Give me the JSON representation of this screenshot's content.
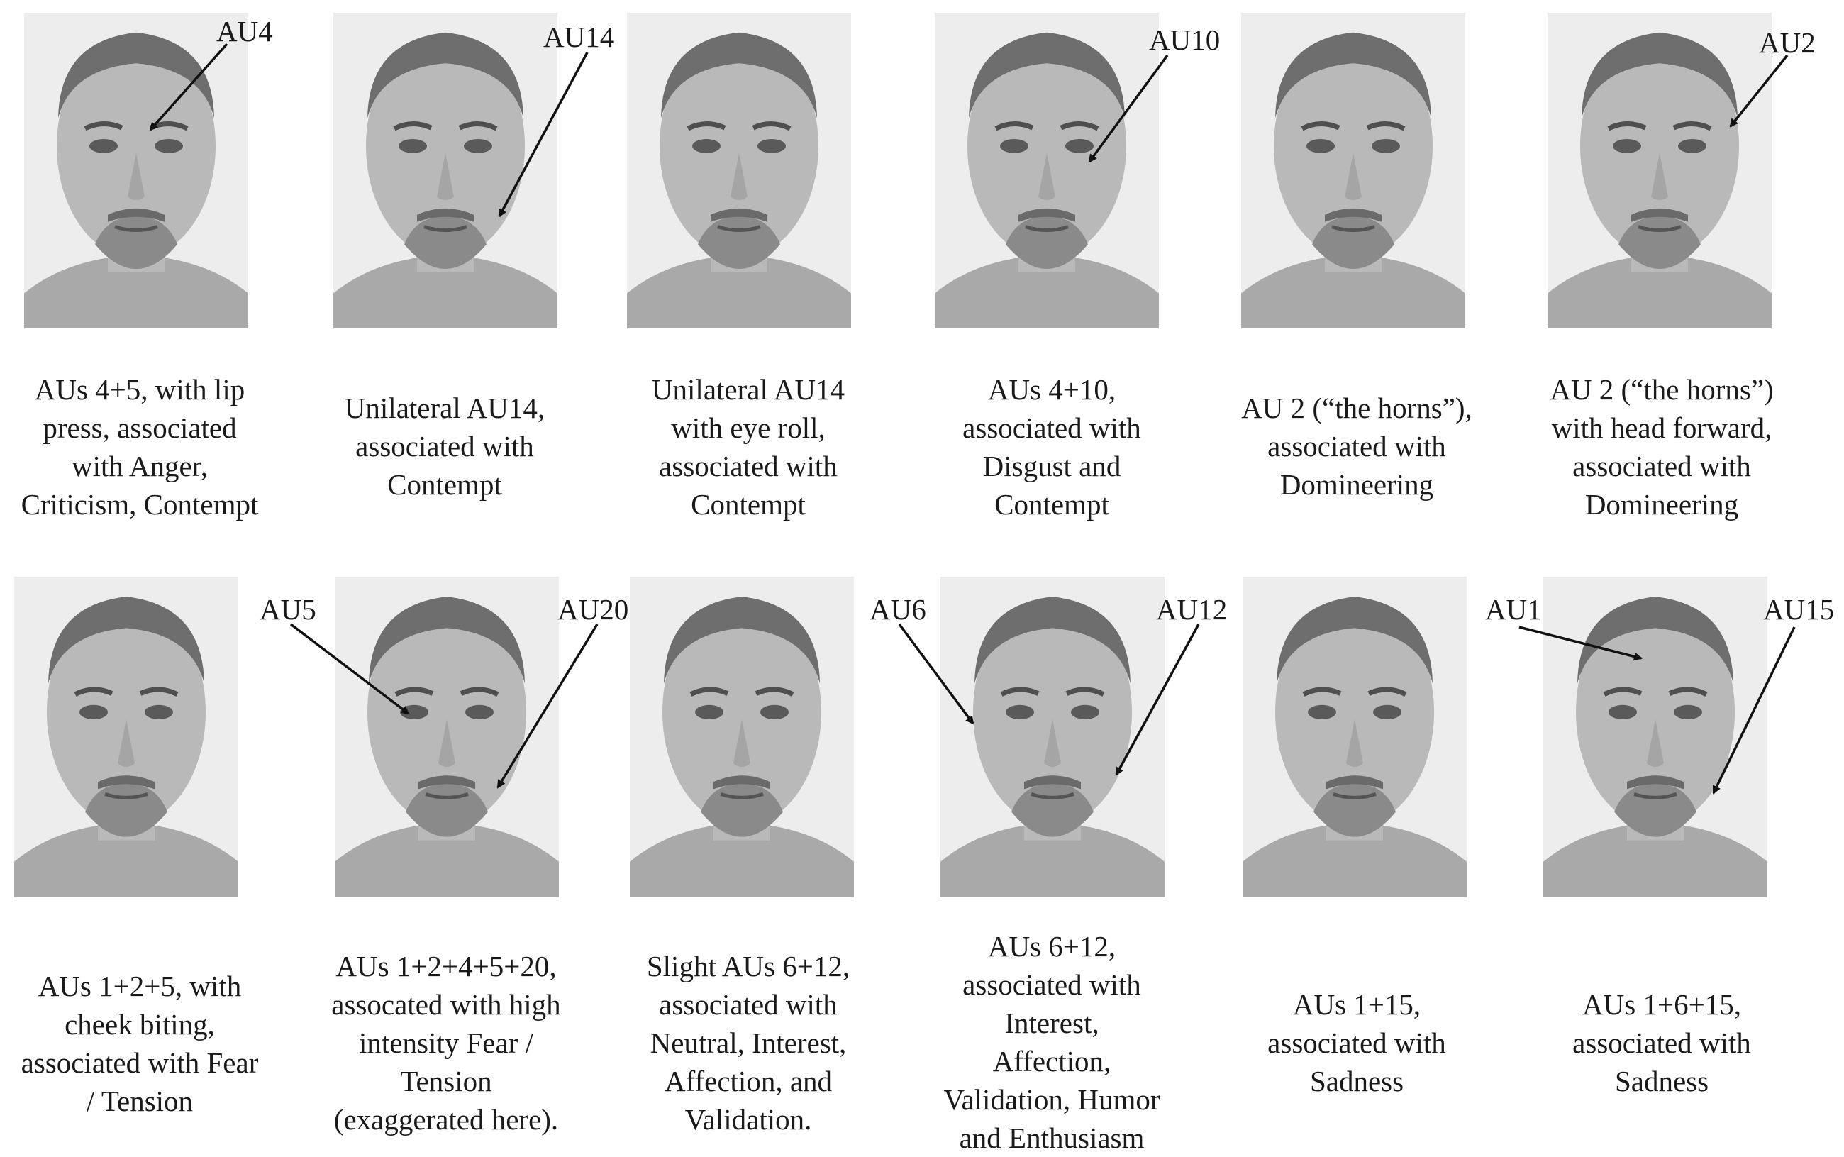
{
  "row1": [
    {
      "au_labels": [
        "AU4"
      ],
      "caption": "AUs 4+5, with lip\npress, associated\nwith Anger,\nCriticism, Contempt"
    },
    {
      "au_labels": [
        "AU14"
      ],
      "caption": "Unilateral AU14,\nassociated with\nContempt"
    },
    {
      "au_labels": [],
      "caption": "Unilateral AU14\nwith eye roll,\nassociated with\nContempt"
    },
    {
      "au_labels": [
        "AU10"
      ],
      "caption": "AUs 4+10,\nassociated with\nDisgust and\nContempt"
    },
    {
      "au_labels": [],
      "caption": "AU 2 (“the horns”),\nassociated with\nDomineering"
    },
    {
      "au_labels": [
        "AU2"
      ],
      "caption": "AU 2 (“the horns”)\nwith head forward,\nassociated with\nDomineering"
    }
  ],
  "row2": [
    {
      "au_labels": [],
      "caption": "AUs 1+2+5, with\ncheek biting,\nassociated with Fear\n/ Tension"
    },
    {
      "au_labels": [
        "AU5",
        "AU20"
      ],
      "caption": "AUs 1+2+4+5+20,\nassocated with high\nintensity Fear /\nTension\n(exaggerated here)."
    },
    {
      "au_labels": [],
      "caption": "Slight AUs 6+12,\nassociated with\nNeutral, Interest,\nAffection, and\nValidation."
    },
    {
      "au_labels": [
        "AU6",
        "AU12"
      ],
      "caption": "AUs 6+12,\nassociated with\nInterest,\nAffection,\nValidation, Humor\nand Enthusiasm"
    },
    {
      "au_labels": [],
      "caption": "AUs 1+15,\nassociated with\nSadness"
    },
    {
      "au_labels": [
        "AU1",
        "AU15"
      ],
      "caption": "AUs 1+6+15,\nassociated with\nSadness"
    }
  ],
  "colors": {
    "photo_bg": "#ededed",
    "skin": "#b9b9b9",
    "hair": "#6e6e6e",
    "arrow": "#111111",
    "text": "#1a1a1a"
  }
}
